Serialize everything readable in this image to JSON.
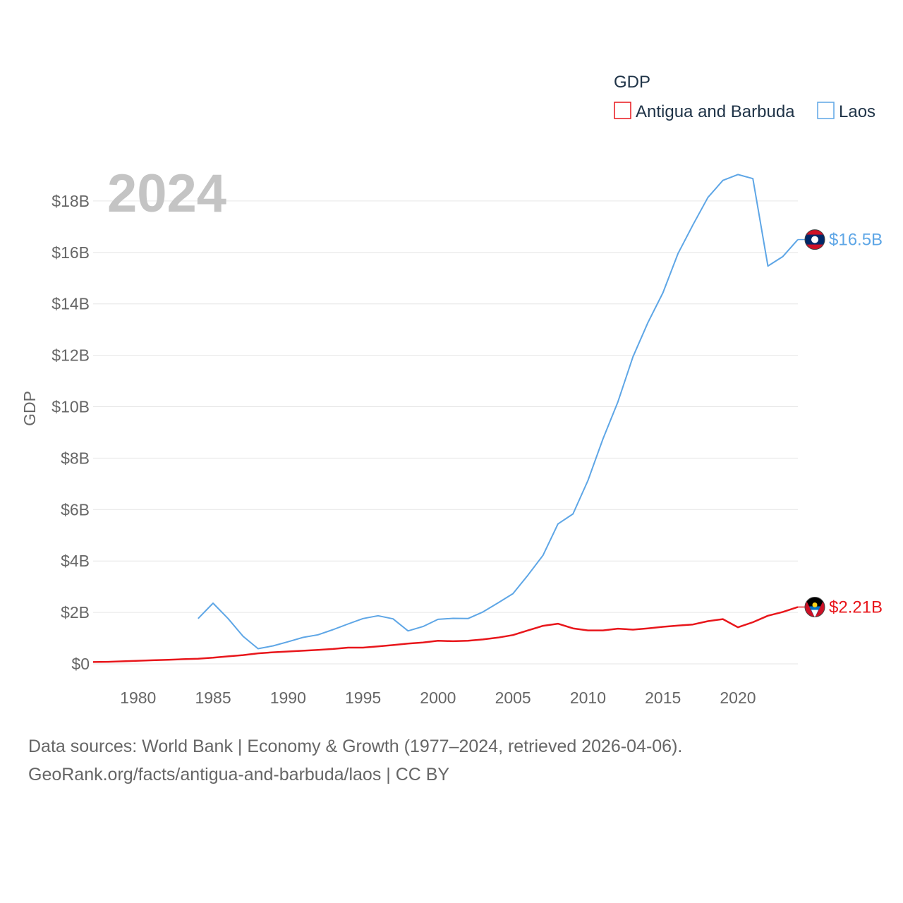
{
  "chart_data": {
    "type": "line",
    "title": "",
    "year_label": "2024",
    "legend": {
      "title": "GDP",
      "placement": "top-right"
    },
    "xlabel": "",
    "ylabel": "GDP",
    "xlim": [
      1977,
      2024
    ],
    "ylim": [
      0,
      19.5
    ],
    "y_unit": "billion USD",
    "x_ticks": [
      1980,
      1985,
      1990,
      1995,
      2000,
      2005,
      2010,
      2015,
      2020
    ],
    "y_ticks": [
      {
        "value": 0,
        "label": "$0"
      },
      {
        "value": 2,
        "label": "$2B"
      },
      {
        "value": 4,
        "label": "$4B"
      },
      {
        "value": 6,
        "label": "$6B"
      },
      {
        "value": 8,
        "label": "$8B"
      },
      {
        "value": 10,
        "label": "$10B"
      },
      {
        "value": 12,
        "label": "$12B"
      },
      {
        "value": 14,
        "label": "$14B"
      },
      {
        "value": 16,
        "label": "$16B"
      },
      {
        "value": 18,
        "label": "$18B"
      }
    ],
    "grid": true,
    "series": [
      {
        "name": "Antigua and Barbuda",
        "color": "#e8161b",
        "flag_icon": "antigua-flag-icon",
        "end_label": "$2.21B",
        "x": [
          1977,
          1978,
          1979,
          1980,
          1981,
          1982,
          1983,
          1984,
          1985,
          1986,
          1987,
          1988,
          1989,
          1990,
          1991,
          1992,
          1993,
          1994,
          1995,
          1996,
          1997,
          1998,
          1999,
          2000,
          2001,
          2002,
          2003,
          2004,
          2005,
          2006,
          2007,
          2008,
          2009,
          2010,
          2011,
          2012,
          2013,
          2014,
          2015,
          2016,
          2017,
          2018,
          2019,
          2020,
          2021,
          2022,
          2023,
          2024
        ],
        "values": [
          0.07,
          0.08,
          0.1,
          0.12,
          0.14,
          0.16,
          0.18,
          0.2,
          0.24,
          0.29,
          0.34,
          0.41,
          0.45,
          0.48,
          0.51,
          0.54,
          0.58,
          0.63,
          0.63,
          0.68,
          0.73,
          0.79,
          0.83,
          0.9,
          0.88,
          0.9,
          0.95,
          1.02,
          1.12,
          1.3,
          1.48,
          1.56,
          1.38,
          1.3,
          1.3,
          1.37,
          1.33,
          1.38,
          1.44,
          1.49,
          1.53,
          1.66,
          1.74,
          1.42,
          1.62,
          1.87,
          2.02,
          2.21
        ]
      },
      {
        "name": "Laos",
        "color": "#5ea6e6",
        "flag_icon": "laos-flag-icon",
        "end_label": "$16.5B",
        "x": [
          1984,
          1985,
          1986,
          1987,
          1988,
          1989,
          1990,
          1991,
          1992,
          1993,
          1994,
          1995,
          1996,
          1997,
          1998,
          1999,
          2000,
          2001,
          2002,
          2003,
          2004,
          2005,
          2006,
          2007,
          2008,
          2009,
          2010,
          2011,
          2012,
          2013,
          2014,
          2015,
          2016,
          2017,
          2018,
          2019,
          2020,
          2021,
          2022,
          2023,
          2024
        ],
        "values": [
          1.76,
          2.36,
          1.76,
          1.07,
          0.59,
          0.7,
          0.86,
          1.03,
          1.13,
          1.33,
          1.55,
          1.76,
          1.87,
          1.75,
          1.28,
          1.45,
          1.73,
          1.77,
          1.76,
          2.02,
          2.37,
          2.73,
          3.45,
          4.22,
          5.44,
          5.83,
          7.13,
          8.75,
          10.19,
          11.94,
          13.27,
          14.43,
          15.95,
          17.07,
          18.14,
          18.8,
          19.03,
          18.87,
          15.47,
          15.84,
          16.5
        ]
      }
    ]
  },
  "footer": {
    "sources": "Data sources: World Bank | Economy & Growth (1977–2024, retrieved 2026-04-06).",
    "link": "GeoRank.org/facts/antigua-and-barbuda/laos | CC BY"
  }
}
